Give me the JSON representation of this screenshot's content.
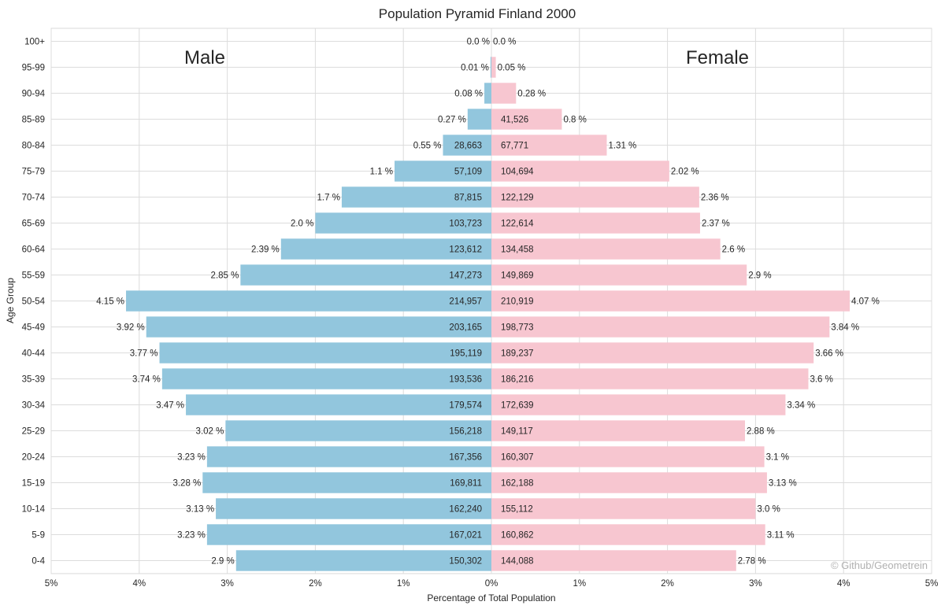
{
  "chart_data": {
    "type": "bar",
    "orientation": "horizontal-diverging",
    "title": "Population Pyramid Finland 2000",
    "xlabel": "Percentage of Total Population",
    "ylabel": "Age Group",
    "xlim": [
      -5,
      5
    ],
    "x_ticks": [
      -5,
      -4,
      -3,
      -2,
      -1,
      0,
      1,
      2,
      3,
      4,
      5
    ],
    "x_tick_labels": [
      "5%",
      "4%",
      "3%",
      "2%",
      "1%",
      "0%",
      "1%",
      "2%",
      "3%",
      "4%",
      "5%"
    ],
    "grid": true,
    "categories": [
      "100+",
      "95-99",
      "90-94",
      "85-89",
      "80-84",
      "75-79",
      "70-74",
      "65-69",
      "60-64",
      "55-59",
      "50-54",
      "45-49",
      "40-44",
      "35-39",
      "30-34",
      "25-29",
      "20-24",
      "15-19",
      "10-14",
      "5-9",
      "0-4"
    ],
    "series": [
      {
        "name": "Male",
        "color": "#92c6dd",
        "values": [
          0.0,
          0.01,
          0.08,
          0.27,
          0.55,
          1.1,
          1.7,
          2.0,
          2.39,
          2.85,
          4.15,
          3.92,
          3.77,
          3.74,
          3.47,
          3.02,
          3.23,
          3.28,
          3.13,
          3.23,
          2.9
        ],
        "value_labels": [
          "0.0 %",
          "0.01 %",
          "0.08 %",
          "0.27 %",
          "0.55 %",
          "1.1 %",
          "1.7 %",
          "2.0 %",
          "2.39 %",
          "2.85 %",
          "4.15 %",
          "3.92 %",
          "3.77 %",
          "3.74 %",
          "3.47 %",
          "3.02 %",
          "3.23 %",
          "3.28 %",
          "3.13 %",
          "3.23 %",
          "2.9 %"
        ],
        "counts": [
          "",
          "",
          "",
          "",
          "28,663",
          "57,109",
          "87,815",
          "103,723",
          "123,612",
          "147,273",
          "214,957",
          "203,165",
          "195,119",
          "193,536",
          "179,574",
          "156,218",
          "167,356",
          "169,811",
          "162,240",
          "167,021",
          "150,302"
        ]
      },
      {
        "name": "Female",
        "color": "#f7c6d0",
        "values": [
          0.0,
          0.05,
          0.28,
          0.8,
          1.31,
          2.02,
          2.36,
          2.37,
          2.6,
          2.9,
          4.07,
          3.84,
          3.66,
          3.6,
          3.34,
          2.88,
          3.1,
          3.13,
          3.0,
          3.11,
          2.78
        ],
        "value_labels": [
          "0.0 %",
          "0.05 %",
          "0.28 %",
          "0.8 %",
          "1.31 %",
          "2.02 %",
          "2.36 %",
          "2.37 %",
          "2.6 %",
          "2.9 %",
          "4.07 %",
          "3.84 %",
          "3.66 %",
          "3.6 %",
          "3.34 %",
          "2.88 %",
          "3.1 %",
          "3.13 %",
          "3.0 %",
          "3.11 %",
          "2.78 %"
        ],
        "counts": [
          "",
          "",
          "",
          "41,526",
          "67,771",
          "104,694",
          "122,129",
          "122,614",
          "134,458",
          "149,869",
          "210,919",
          "198,773",
          "189,237",
          "186,216",
          "172,639",
          "149,117",
          "160,307",
          "162,188",
          "155,112",
          "160,862",
          "144,088"
        ]
      }
    ],
    "annotations": {
      "left_label": "Male",
      "right_label": "Female",
      "credit": "© Github/Geometrein"
    }
  }
}
